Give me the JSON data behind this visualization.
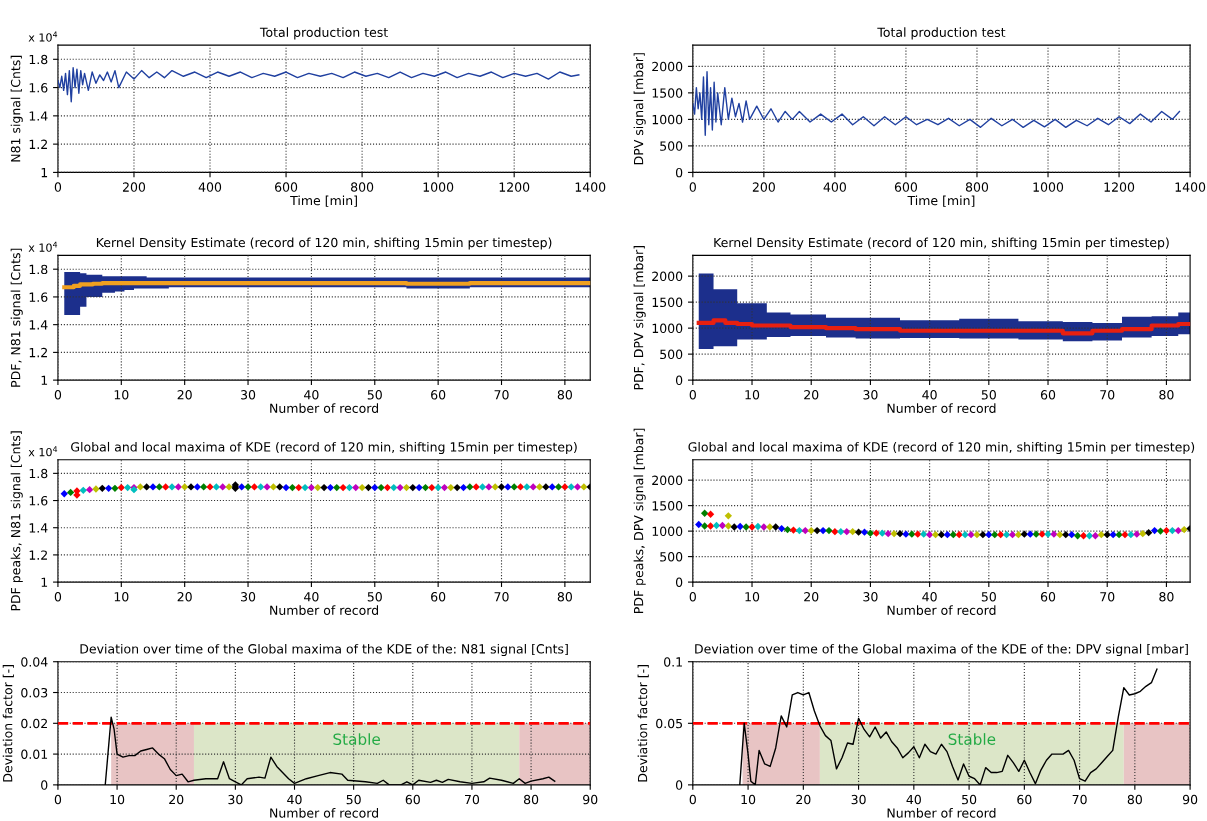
{
  "chart_data": [
    {
      "type": "line",
      "title": "Total production test",
      "xlabel": "Time [min]",
      "ylabel": "N81 signal [Cnts]",
      "xlim": [
        0,
        1400
      ],
      "xticks": [
        0,
        200,
        400,
        600,
        800,
        1000,
        1200,
        1400
      ],
      "ylim": [
        1,
        1.9
      ],
      "yticks": [
        1,
        1.2,
        1.4,
        1.6,
        1.8
      ],
      "grid": true,
      "annotations": [
        "x 10$^{4}$"
      ],
      "series": [
        {
          "color": "#2040a0",
          "x": [
            0,
            5,
            10,
            15,
            20,
            25,
            30,
            35,
            40,
            45,
            50,
            55,
            60,
            65,
            70,
            80,
            90,
            100,
            110,
            120,
            130,
            140,
            150,
            160,
            180,
            200,
            220,
            240,
            260,
            280,
            300,
            330,
            360,
            390,
            420,
            450,
            480,
            510,
            540,
            570,
            600,
            630,
            660,
            690,
            720,
            750,
            780,
            810,
            840,
            870,
            900,
            930,
            960,
            990,
            1020,
            1050,
            1080,
            1110,
            1140,
            1170,
            1200,
            1230,
            1260,
            1290,
            1320,
            1350,
            1370
          ],
          "values": [
            1.65,
            1.6,
            1.68,
            1.58,
            1.7,
            1.55,
            1.72,
            1.5,
            1.74,
            1.6,
            1.73,
            1.56,
            1.72,
            1.62,
            1.7,
            1.58,
            1.71,
            1.63,
            1.69,
            1.65,
            1.71,
            1.64,
            1.72,
            1.6,
            1.71,
            1.66,
            1.72,
            1.67,
            1.71,
            1.67,
            1.72,
            1.68,
            1.71,
            1.67,
            1.71,
            1.68,
            1.71,
            1.67,
            1.7,
            1.68,
            1.71,
            1.67,
            1.7,
            1.68,
            1.7,
            1.67,
            1.71,
            1.68,
            1.7,
            1.67,
            1.71,
            1.67,
            1.7,
            1.68,
            1.71,
            1.67,
            1.7,
            1.68,
            1.71,
            1.67,
            1.7,
            1.68,
            1.7,
            1.66,
            1.71,
            1.68,
            1.69
          ]
        }
      ]
    },
    {
      "type": "line",
      "title": "Total production test",
      "xlabel": "Time [min]",
      "ylabel": "DPV signal [mbar]",
      "xlim": [
        0,
        1400
      ],
      "xticks": [
        0,
        200,
        400,
        600,
        800,
        1000,
        1200,
        1400
      ],
      "ylim": [
        0,
        2400
      ],
      "yticks": [
        0,
        500,
        1000,
        1500,
        2000
      ],
      "grid": true,
      "series": [
        {
          "color": "#2040a0",
          "x": [
            0,
            5,
            10,
            15,
            20,
            25,
            30,
            35,
            40,
            45,
            50,
            55,
            60,
            65,
            70,
            80,
            90,
            100,
            110,
            120,
            130,
            140,
            150,
            160,
            180,
            200,
            220,
            240,
            260,
            280,
            300,
            330,
            360,
            390,
            420,
            450,
            480,
            510,
            540,
            570,
            600,
            630,
            660,
            690,
            720,
            750,
            780,
            810,
            840,
            870,
            900,
            930,
            960,
            990,
            1020,
            1050,
            1080,
            1110,
            1140,
            1170,
            1200,
            1230,
            1260,
            1290,
            1320,
            1350,
            1370
          ],
          "values": [
            1300,
            1100,
            1600,
            1200,
            1500,
            1000,
            1800,
            700,
            1900,
            900,
            1600,
            800,
            1700,
            950,
            1500,
            900,
            1600,
            1000,
            1400,
            1050,
            1300,
            950,
            1350,
            1000,
            1250,
            1000,
            1200,
            950,
            1150,
            1000,
            1150,
            950,
            1100,
            950,
            1100,
            900,
            1050,
            880,
            1050,
            900,
            1050,
            900,
            1000,
            900,
            1020,
            880,
            1000,
            850,
            1020,
            880,
            1000,
            850,
            980,
            860,
            1000,
            850,
            980,
            880,
            1020,
            900,
            1050,
            920,
            1100,
            950,
            1150,
            1000,
            1150
          ]
        }
      ]
    },
    {
      "type": "line",
      "title": "Kernel Density Estimate (record of 120 min, shifting 15min per timestep)",
      "xlabel": "Number of record",
      "ylabel": "PDF, N81 signal [Cnts]",
      "xlim": [
        0,
        84
      ],
      "xticks": [
        0,
        10,
        20,
        30,
        40,
        50,
        60,
        70,
        80
      ],
      "ylim": [
        1,
        1.9
      ],
      "yticks": [
        1,
        1.2,
        1.4,
        1.6,
        1.8
      ],
      "grid": true,
      "annotations": [
        "x 10$^{4}$"
      ],
      "series": [
        {
          "color": "#f0a020",
          "x": [
            1,
            2,
            3,
            4,
            5,
            6,
            8,
            10,
            11,
            13,
            15,
            20,
            30,
            40,
            50,
            60,
            70,
            80,
            84
          ],
          "values": [
            1.67,
            1.67,
            1.68,
            1.69,
            1.69,
            1.695,
            1.7,
            1.7,
            1.7,
            1.7,
            1.7,
            1.7,
            1.7,
            1.7,
            1.7,
            1.695,
            1.7,
            1.7,
            1.7
          ],
          "lower": [
            1.47,
            1.47,
            1.47,
            1.53,
            1.6,
            1.6,
            1.63,
            1.64,
            1.65,
            1.66,
            1.66,
            1.67,
            1.67,
            1.67,
            1.67,
            1.66,
            1.67,
            1.67,
            1.67
          ],
          "upper": [
            1.78,
            1.78,
            1.78,
            1.77,
            1.76,
            1.76,
            1.75,
            1.75,
            1.75,
            1.75,
            1.74,
            1.74,
            1.74,
            1.74,
            1.74,
            1.74,
            1.74,
            1.74,
            1.74
          ]
        }
      ]
    },
    {
      "type": "line",
      "title": "Kernel Density Estimate (record of 120 min, shifting 15min per timestep)",
      "xlabel": "Number of record",
      "ylabel": "PDF, DPV signal [mbar]",
      "xlim": [
        0,
        84
      ],
      "xticks": [
        0,
        10,
        20,
        30,
        40,
        50,
        60,
        70,
        80
      ],
      "ylim": [
        0,
        2400
      ],
      "yticks": [
        0,
        500,
        1000,
        1500,
        2000
      ],
      "grid": true,
      "series": [
        {
          "color": "#e82010",
          "x": [
            1,
            3,
            4,
            7,
            8,
            12,
            13,
            20,
            25,
            30,
            40,
            50,
            60,
            65,
            70,
            75,
            80,
            84
          ],
          "values": [
            1100,
            1100,
            1150,
            1100,
            1080,
            1050,
            1050,
            1020,
            1000,
            980,
            950,
            950,
            950,
            900,
            950,
            980,
            1050,
            1080
          ],
          "lower": [
            600,
            600,
            650,
            650,
            780,
            780,
            830,
            850,
            820,
            800,
            810,
            800,
            780,
            750,
            760,
            820,
            850,
            880
          ],
          "upper": [
            2050,
            2050,
            1750,
            1750,
            1480,
            1480,
            1300,
            1260,
            1200,
            1200,
            1150,
            1180,
            1130,
            1120,
            1100,
            1220,
            1230,
            1300
          ]
        }
      ]
    },
    {
      "type": "scatter",
      "title": "Global and local maxima of KDE (record of 120 min, shifting 15min per timestep)",
      "xlabel": "Number of record",
      "ylabel": "PDF peaks, N81 signal [Cnts]",
      "xlim": [
        0,
        84
      ],
      "xticks": [
        0,
        10,
        20,
        30,
        40,
        50,
        60,
        70,
        80
      ],
      "ylim": [
        1,
        1.9
      ],
      "yticks": [
        1,
        1.2,
        1.4,
        1.6,
        1.8
      ],
      "grid": true,
      "marker": "diamond",
      "annotations": [
        "x 10$^{4}$"
      ],
      "series": [
        {
          "x": [
            1,
            2,
            3,
            4,
            5,
            6,
            7,
            8,
            9,
            10,
            11,
            12,
            13,
            14,
            15,
            16,
            17,
            18,
            19,
            20,
            21,
            22,
            23,
            24,
            25,
            26,
            27,
            28,
            29,
            30,
            31,
            32,
            33,
            34,
            35,
            36,
            37,
            38,
            39,
            40,
            41,
            42,
            43,
            44,
            45,
            46,
            47,
            48,
            49,
            50,
            51,
            52,
            53,
            54,
            55,
            56,
            57,
            58,
            59,
            60,
            61,
            62,
            63,
            64,
            65,
            66,
            67,
            68,
            69,
            70,
            71,
            72,
            73,
            74,
            75,
            76,
            77,
            78,
            79,
            80,
            81,
            82,
            83,
            84
          ],
          "values": [
            1.65,
            1.66,
            1.67,
            1.675,
            1.68,
            1.685,
            1.69,
            1.69,
            1.69,
            1.695,
            1.695,
            1.695,
            1.7,
            1.7,
            1.7,
            1.7,
            1.7,
            1.7,
            1.7,
            1.7,
            1.7,
            1.7,
            1.7,
            1.7,
            1.7,
            1.7,
            1.7,
            1.7,
            1.7,
            1.7,
            1.7,
            1.7,
            1.7,
            1.7,
            1.7,
            1.695,
            1.695,
            1.695,
            1.695,
            1.695,
            1.695,
            1.695,
            1.695,
            1.695,
            1.695,
            1.695,
            1.695,
            1.695,
            1.695,
            1.695,
            1.695,
            1.695,
            1.695,
            1.695,
            1.695,
            1.695,
            1.695,
            1.695,
            1.695,
            1.695,
            1.695,
            1.695,
            1.695,
            1.695,
            1.7,
            1.7,
            1.7,
            1.7,
            1.7,
            1.7,
            1.7,
            1.7,
            1.7,
            1.7,
            1.7,
            1.7,
            1.7,
            1.7,
            1.7,
            1.7,
            1.7,
            1.7,
            1.7,
            1.7
          ],
          "colors": [
            "#0000ff",
            "#008000",
            "#ff0000",
            "#00bfbf",
            "#bf00bf",
            "#bfbf00",
            "#000000",
            "#0000ff",
            "#008000",
            "#ff0000",
            "#00bfbf",
            "#bf00bf",
            "#bfbf00",
            "#000000",
            "#0000ff",
            "#008000",
            "#ff0000",
            "#00bfbf",
            "#bf00bf",
            "#bfbf00",
            "#000000",
            "#0000ff",
            "#008000",
            "#ff0000",
            "#00bfbf",
            "#bf00bf",
            "#bfbf00",
            "#000000",
            "#0000ff",
            "#008000",
            "#ff0000",
            "#00bfbf",
            "#bf00bf",
            "#bfbf00",
            "#000000",
            "#0000ff",
            "#008000",
            "#ff0000",
            "#00bfbf",
            "#bf00bf",
            "#bfbf00",
            "#000000",
            "#0000ff",
            "#008000",
            "#ff0000",
            "#00bfbf",
            "#bf00bf",
            "#bfbf00",
            "#000000",
            "#0000ff",
            "#008000",
            "#ff0000",
            "#00bfbf",
            "#bf00bf",
            "#bfbf00",
            "#000000",
            "#0000ff",
            "#008000",
            "#ff0000",
            "#00bfbf",
            "#bf00bf",
            "#bfbf00",
            "#000000",
            "#0000ff",
            "#008000",
            "#ff0000",
            "#00bfbf",
            "#bf00bf",
            "#bfbf00",
            "#000000",
            "#0000ff",
            "#008000",
            "#ff0000",
            "#00bfbf",
            "#bf00bf",
            "#bfbf00",
            "#000000",
            "#0000ff",
            "#008000",
            "#ff0000",
            "#00bfbf",
            "#bf00bf",
            "#bfbf00",
            "#000000"
          ]
        },
        {
          "x": [
            3,
            12,
            28,
            28
          ],
          "values": [
            1.64,
            1.68,
            1.715,
            1.69
          ],
          "colors": [
            "#ff0000",
            "#00bfbf",
            "#000000",
            "#000000"
          ]
        }
      ]
    },
    {
      "type": "scatter",
      "title": "Global and local maxima of KDE (record of 120 min, shifting 15min per timestep)",
      "xlabel": "Number of record",
      "ylabel": "PDF peaks, DPV signal [mbar]",
      "xlim": [
        0,
        84
      ],
      "xticks": [
        0,
        10,
        20,
        30,
        40,
        50,
        60,
        70,
        80
      ],
      "ylim": [
        0,
        2400
      ],
      "yticks": [
        0,
        500,
        1000,
        1500,
        2000
      ],
      "grid": true,
      "marker": "diamond",
      "series": [
        {
          "x": [
            1,
            2,
            3,
            4,
            5,
            6,
            7,
            8,
            9,
            10,
            11,
            12,
            13,
            14,
            15,
            16,
            17,
            18,
            19,
            20,
            21,
            22,
            23,
            24,
            25,
            26,
            27,
            28,
            29,
            30,
            31,
            32,
            33,
            34,
            35,
            36,
            37,
            38,
            39,
            40,
            41,
            42,
            43,
            44,
            45,
            46,
            47,
            48,
            49,
            50,
            51,
            52,
            53,
            54,
            55,
            56,
            57,
            58,
            59,
            60,
            61,
            62,
            63,
            64,
            65,
            66,
            67,
            68,
            69,
            70,
            71,
            72,
            73,
            74,
            75,
            76,
            77,
            78,
            79,
            80,
            81,
            82,
            83,
            84
          ],
          "values": [
            1130,
            1100,
            1100,
            1110,
            1110,
            1100,
            1080,
            1090,
            1080,
            1080,
            1090,
            1080,
            1080,
            1080,
            1050,
            1030,
            1020,
            1010,
            1010,
            1010,
            1010,
            1010,
            1010,
            990,
            990,
            990,
            990,
            980,
            980,
            960,
            960,
            960,
            950,
            950,
            950,
            940,
            940,
            940,
            940,
            930,
            930,
            930,
            930,
            930,
            930,
            930,
            930,
            930,
            930,
            930,
            930,
            930,
            930,
            930,
            930,
            940,
            940,
            940,
            940,
            940,
            940,
            930,
            930,
            930,
            910,
            910,
            910,
            910,
            930,
            930,
            930,
            930,
            930,
            930,
            940,
            950,
            970,
            1010,
            1000,
            1010,
            1010,
            1010,
            1030,
            1050
          ],
          "colors": [
            "#0000ff",
            "#008000",
            "#ff0000",
            "#00bfbf",
            "#bf00bf",
            "#bfbf00",
            "#000000",
            "#0000ff",
            "#008000",
            "#ff0000",
            "#00bfbf",
            "#bf00bf",
            "#bfbf00",
            "#000000",
            "#0000ff",
            "#008000",
            "#ff0000",
            "#00bfbf",
            "#bf00bf",
            "#bfbf00",
            "#000000",
            "#0000ff",
            "#008000",
            "#ff0000",
            "#00bfbf",
            "#bf00bf",
            "#bfbf00",
            "#000000",
            "#0000ff",
            "#008000",
            "#ff0000",
            "#00bfbf",
            "#bf00bf",
            "#bfbf00",
            "#000000",
            "#0000ff",
            "#008000",
            "#ff0000",
            "#00bfbf",
            "#bf00bf",
            "#bfbf00",
            "#000000",
            "#0000ff",
            "#008000",
            "#ff0000",
            "#00bfbf",
            "#bf00bf",
            "#bfbf00",
            "#000000",
            "#0000ff",
            "#008000",
            "#ff0000",
            "#00bfbf",
            "#bf00bf",
            "#bfbf00",
            "#000000",
            "#0000ff",
            "#008000",
            "#ff0000",
            "#00bfbf",
            "#bf00bf",
            "#bfbf00",
            "#000000",
            "#0000ff",
            "#008000",
            "#ff0000",
            "#00bfbf",
            "#bf00bf",
            "#bfbf00",
            "#000000",
            "#0000ff",
            "#008000",
            "#ff0000",
            "#00bfbf",
            "#bf00bf",
            "#bfbf00",
            "#000000",
            "#0000ff",
            "#008000",
            "#ff0000",
            "#00bfbf",
            "#bf00bf",
            "#bfbf00",
            "#000000"
          ]
        },
        {
          "x": [
            2,
            3,
            6
          ],
          "values": [
            1350,
            1330,
            1300
          ],
          "colors": [
            "#008000",
            "#ff0000",
            "#bfbf00"
          ]
        }
      ]
    },
    {
      "type": "line",
      "title": "Deviation over time of the Global maxima of the KDE of the: N81 signal [Cnts]",
      "xlabel": "Number of record",
      "ylabel": "Deviation factor [-]",
      "xlim": [
        0,
        90
      ],
      "xticks": [
        0,
        10,
        20,
        30,
        40,
        50,
        60,
        70,
        80,
        90
      ],
      "ylim": [
        0,
        0.04
      ],
      "yticks": [
        0,
        0.01,
        0.02,
        0.03,
        0.04
      ],
      "grid": true,
      "ref_lines": [
        {
          "axis": "y",
          "value": 0.02,
          "color": "#ff0000",
          "line_style": "dashed"
        }
      ],
      "bands": [
        {
          "axis": "x",
          "from": 9,
          "to": 23,
          "color": "#e8c4c4"
        },
        {
          "axis": "x",
          "from": 23,
          "to": 78,
          "color": "#dce6c8"
        },
        {
          "axis": "x",
          "from": 78,
          "to": 90,
          "color": "#e8c4c4"
        }
      ],
      "annotations": [
        "Stable"
      ],
      "series": [
        {
          "color": "#000000",
          "x": [
            8,
            9,
            9.5,
            10,
            11,
            12,
            13,
            14,
            15,
            16,
            17,
            18,
            19,
            20,
            21,
            22,
            23,
            25,
            27,
            28,
            29,
            30,
            31,
            32,
            34,
            35,
            36,
            37,
            39,
            40,
            42,
            44,
            46,
            48,
            49,
            52,
            54,
            55,
            56,
            58,
            59,
            60,
            61,
            63,
            64,
            65,
            66,
            68,
            70,
            72,
            73,
            75,
            77,
            78,
            79,
            80,
            82,
            83,
            84
          ],
          "values": [
            0,
            0.022,
            0.018,
            0.01,
            0.009,
            0.0095,
            0.0095,
            0.011,
            0.0115,
            0.012,
            0.01,
            0.0085,
            0.005,
            0.003,
            0.0035,
            0.001,
            0.0015,
            0.002,
            0.002,
            0.0075,
            0.002,
            0.001,
            0,
            0.002,
            0.0025,
            0.0022,
            0.009,
            0.006,
            0.002,
            0.0005,
            0.002,
            0.003,
            0.004,
            0.0035,
            0.0015,
            0.001,
            0.0005,
            0.0015,
            0,
            0,
            0.001,
            0,
            0.0015,
            0.0008,
            0.0015,
            0.0008,
            0.0018,
            0.001,
            0.0005,
            0.001,
            0.0022,
            0.0015,
            0.0005,
            0.002,
            0.0005,
            0.0012,
            0.002,
            0.0025,
            0.0012
          ]
        }
      ]
    },
    {
      "type": "line",
      "title": "Deviation over time of the Global maxima of the KDE of the: DPV signal [mbar]",
      "xlabel": "Number of record",
      "ylabel": "Deviation factor [-]",
      "xlim": [
        0,
        90
      ],
      "xticks": [
        0,
        10,
        20,
        30,
        40,
        50,
        60,
        70,
        80,
        90
      ],
      "ylim": [
        0,
        0.1
      ],
      "yticks": [
        0,
        0.05,
        0.1
      ],
      "grid": true,
      "ref_lines": [
        {
          "axis": "y",
          "value": 0.05,
          "color": "#ff0000",
          "line_style": "dashed"
        }
      ],
      "bands": [
        {
          "axis": "x",
          "from": 9,
          "to": 23,
          "color": "#e8c4c4"
        },
        {
          "axis": "x",
          "from": 23,
          "to": 78,
          "color": "#dce6c8"
        },
        {
          "axis": "x",
          "from": 78,
          "to": 90,
          "color": "#e8c4c4"
        }
      ],
      "annotations": [
        "Stable"
      ],
      "series": [
        {
          "color": "#000000",
          "x": [
            8.5,
            9.3,
            10,
            10.5,
            11.3,
            12,
            13,
            14,
            15,
            16,
            17,
            18,
            19,
            20,
            21,
            22,
            23,
            24,
            25,
            26,
            27,
            28,
            29,
            30,
            31,
            32,
            33,
            34,
            35,
            36,
            37,
            38,
            39,
            40,
            41,
            42,
            43,
            44,
            45,
            46,
            47,
            48,
            49,
            50,
            51,
            52,
            53,
            54,
            55,
            56,
            57,
            58,
            59,
            60,
            61,
            62,
            63,
            64,
            65,
            66,
            67,
            68,
            69,
            70,
            71,
            72,
            73,
            74,
            75,
            76,
            77,
            78,
            79,
            80,
            81,
            82,
            83,
            84
          ],
          "values": [
            0,
            0.05,
            0.025,
            0.003,
            0,
            0.028,
            0.017,
            0.015,
            0.03,
            0.056,
            0.047,
            0.073,
            0.075,
            0.073,
            0.075,
            0.06,
            0.048,
            0.04,
            0.036,
            0.013,
            0.022,
            0.034,
            0.033,
            0.054,
            0.045,
            0.039,
            0.047,
            0.038,
            0.043,
            0.035,
            0.03,
            0.022,
            0.026,
            0.031,
            0.022,
            0.033,
            0.027,
            0.025,
            0.033,
            0.027,
            0.015,
            0.004,
            0.017,
            0.007,
            0.005,
            0,
            0.014,
            0.01,
            0.01,
            0.011,
            0.024,
            0.018,
            0.011,
            0.02,
            0.01,
            0.001,
            0.012,
            0.02,
            0.025,
            0.025,
            0.025,
            0.028,
            0.02,
            0.005,
            0.003,
            0.01,
            0.013,
            0.018,
            0.023,
            0.028,
            0.055,
            0.079,
            0.073,
            0.074,
            0.076,
            0.08,
            0.083,
            0.094
          ]
        }
      ]
    }
  ]
}
